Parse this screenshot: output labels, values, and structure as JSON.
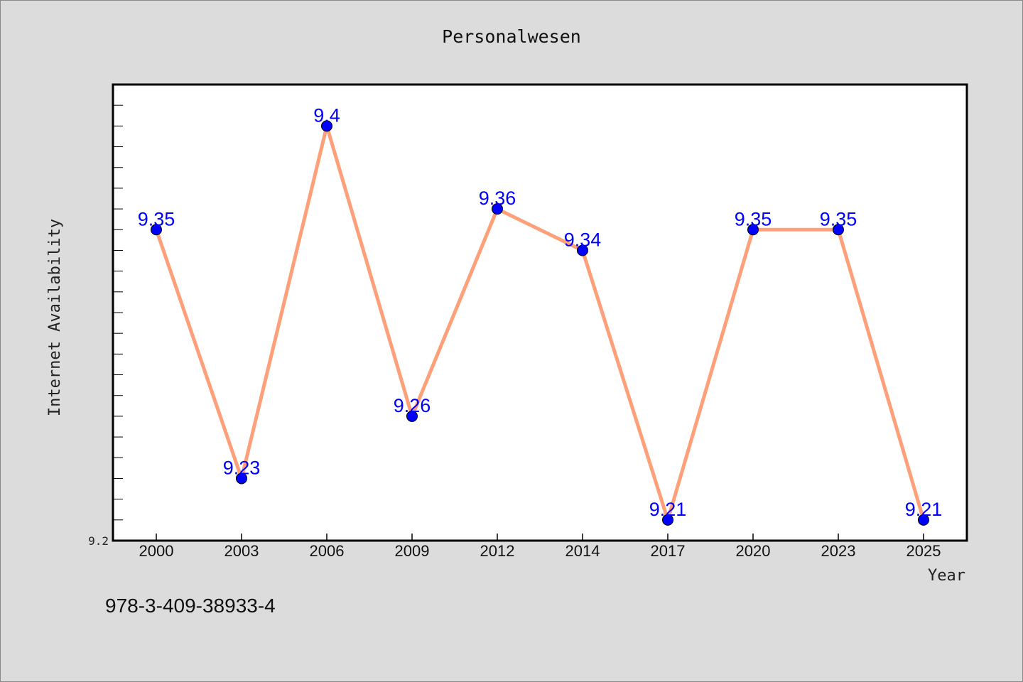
{
  "chart_data": {
    "type": "line",
    "title": "Personalwesen",
    "xlabel": "Year",
    "ylabel": "Internet Availability",
    "categories": [
      "2000",
      "2003",
      "2006",
      "2009",
      "2012",
      "2014",
      "2017",
      "2020",
      "2023",
      "2025"
    ],
    "series": [
      {
        "values": [
          9.35,
          9.23,
          9.4,
          9.26,
          9.36,
          9.34,
          9.21,
          9.35,
          9.35,
          9.21
        ]
      }
    ],
    "data_labels": [
      "9.35",
      "9.23",
      "9.4",
      "9.26",
      "9.36",
      "9.34",
      "9.21",
      "9.35",
      "9.35",
      "9.21"
    ],
    "ylim": [
      9.2,
      9.42
    ],
    "ytick_labels": [
      "9.2"
    ],
    "minor_tick_step": 0.01,
    "grid": false,
    "legend": "none",
    "line_color": "#ffa07a",
    "marker_color": "#0000ff",
    "data_label_color": "#0000ff",
    "background_color": "#dcdcdc",
    "plot_background_color": "#ffffff"
  },
  "annotation": {
    "isbn": "978-3-409-38933-4"
  }
}
